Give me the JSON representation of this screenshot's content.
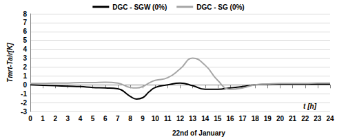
{
  "chart_data": {
    "type": "line",
    "ylabel": "Tmrt-Tair[K]",
    "xlabel": "t [h]",
    "annotations": [
      "22nd of January"
    ],
    "x": [
      0,
      1,
      2,
      3,
      4,
      5,
      6,
      7,
      8,
      8.5,
      9,
      9.5,
      10,
      11,
      12,
      13,
      14,
      15,
      16,
      17,
      18,
      19,
      20,
      21,
      22,
      23,
      24
    ],
    "series": [
      {
        "name": "DGC - SGW (0%)",
        "color": "#000000",
        "values": [
          0,
          -0.05,
          -0.1,
          -0.15,
          -0.2,
          -0.3,
          -0.35,
          -0.45,
          -1.3,
          -1.6,
          -1.45,
          -0.8,
          -0.3,
          0,
          0.2,
          -0.1,
          -0.5,
          -0.5,
          -0.35,
          -0.2,
          0,
          0.05,
          0.1,
          0.1,
          0.1,
          0.1,
          0.1
        ]
      },
      {
        "name": "DGC - SG (0%)",
        "color": "#a6a6a6",
        "values": [
          0.15,
          0.15,
          0.2,
          0.2,
          0.25,
          0.25,
          0.3,
          0.2,
          -0.3,
          -0.35,
          -0.2,
          0.2,
          0.5,
          0.8,
          1.8,
          3.0,
          2.2,
          0.5,
          -0.5,
          -0.35,
          0,
          0.1,
          0.15,
          0.15,
          0.15,
          0.2,
          0.2
        ]
      }
    ],
    "xlim": [
      0,
      24
    ],
    "xticks": [
      0,
      1,
      2,
      3,
      4,
      5,
      6,
      7,
      8,
      9,
      10,
      11,
      12,
      13,
      14,
      15,
      16,
      17,
      18,
      19,
      20,
      21,
      22,
      23,
      24
    ],
    "ylim": [
      -3,
      8
    ],
    "yticks": [
      -3,
      -2,
      -1,
      0,
      1,
      2,
      3,
      4,
      5,
      6,
      7,
      8
    ],
    "grid": true,
    "legend": "top"
  }
}
